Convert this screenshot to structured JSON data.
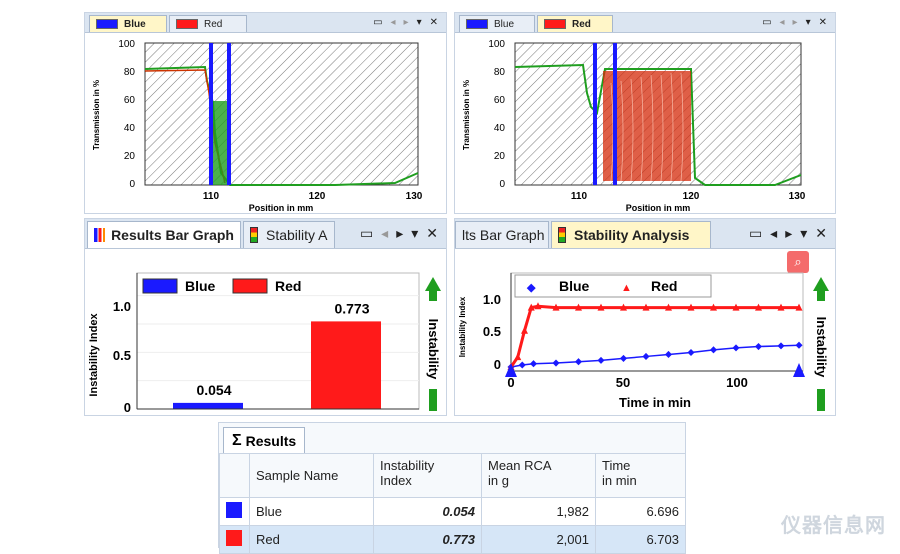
{
  "colors": {
    "blue": "#1a1aff",
    "red": "#ff1a1a",
    "green": "#1f9e1f",
    "tab_bg": "#dbe5f1",
    "active_tab": "#fff6c8"
  },
  "profile_left": {
    "tabs": [
      "Blue",
      "Red"
    ],
    "active_tab": "Blue",
    "ylabel": "Transmission in %",
    "xlabel": "Position in mm",
    "yticks": [
      "100",
      "80",
      "60",
      "40",
      "20",
      "0"
    ],
    "xticks": [
      "110",
      "120",
      "130"
    ]
  },
  "profile_right": {
    "tabs": [
      "Blue",
      "Red"
    ],
    "active_tab": "Red",
    "ylabel": "Transmission in %",
    "xlabel": "Position in mm",
    "yticks": [
      "100",
      "80",
      "60",
      "40",
      "20",
      "0"
    ],
    "xticks": [
      "110",
      "120",
      "130"
    ]
  },
  "bar_panel": {
    "tabs": [
      "Results Bar Graph",
      "Stability A"
    ],
    "active_tab": "Results Bar Graph",
    "legend": [
      "Blue",
      "Red"
    ],
    "ylabel": "Instability Index",
    "side_label": "Instability",
    "yticks": [
      "1.0",
      "0.5",
      "0"
    ],
    "bar_labels": [
      "0.054",
      "0.773"
    ]
  },
  "stability_panel": {
    "tabs": [
      "lts Bar Graph",
      "Stability Analysis"
    ],
    "active_tab": "Stability Analysis",
    "legend": [
      "Blue",
      "Red"
    ],
    "ylabel": "Instability Index",
    "xlabel": "Time in min",
    "side_label": "Instability",
    "yticks": [
      "1.0",
      "0.5",
      "0"
    ],
    "xticks": [
      "0",
      "50",
      "100"
    ]
  },
  "chart_data": [
    {
      "type": "bar",
      "categories": [
        "Blue",
        "Red"
      ],
      "values": [
        0.054,
        0.773
      ],
      "ylabel": "Instability Index",
      "ylim": [
        0,
        1.2
      ]
    },
    {
      "type": "scatter",
      "xlabel": "Time in min",
      "ylabel": "Instability Index",
      "xlim": [
        -5,
        130
      ],
      "ylim": [
        -0.05,
        1.2
      ],
      "series": [
        {
          "name": "Blue",
          "x": [
            0,
            5,
            10,
            20,
            30,
            40,
            50,
            60,
            70,
            80,
            90,
            100,
            110,
            120,
            128
          ],
          "y": [
            0.0,
            0.03,
            0.05,
            0.06,
            0.08,
            0.1,
            0.13,
            0.16,
            0.19,
            0.22,
            0.26,
            0.29,
            0.31,
            0.32,
            0.33
          ]
        },
        {
          "name": "Red",
          "x": [
            0,
            3,
            6,
            9,
            12,
            20,
            30,
            40,
            50,
            60,
            70,
            80,
            90,
            100,
            110,
            120,
            128
          ],
          "y": [
            0.0,
            0.15,
            0.55,
            0.9,
            0.92,
            0.9,
            0.9,
            0.9,
            0.9,
            0.9,
            0.9,
            0.9,
            0.9,
            0.9,
            0.9,
            0.9,
            0.9
          ]
        }
      ]
    }
  ],
  "results": {
    "tab_label": "Results",
    "headers": [
      "",
      "Sample Name",
      "Instability\nIndex",
      "Mean RCA\nin g",
      "Time\nin min"
    ],
    "rows": [
      {
        "name": "Blue",
        "index": "0.054",
        "rca": "1,982",
        "time": "6.696"
      },
      {
        "name": "Red",
        "index": "0.773",
        "rca": "2,001",
        "time": "6.703"
      }
    ]
  },
  "watermark": "仪器信息网"
}
